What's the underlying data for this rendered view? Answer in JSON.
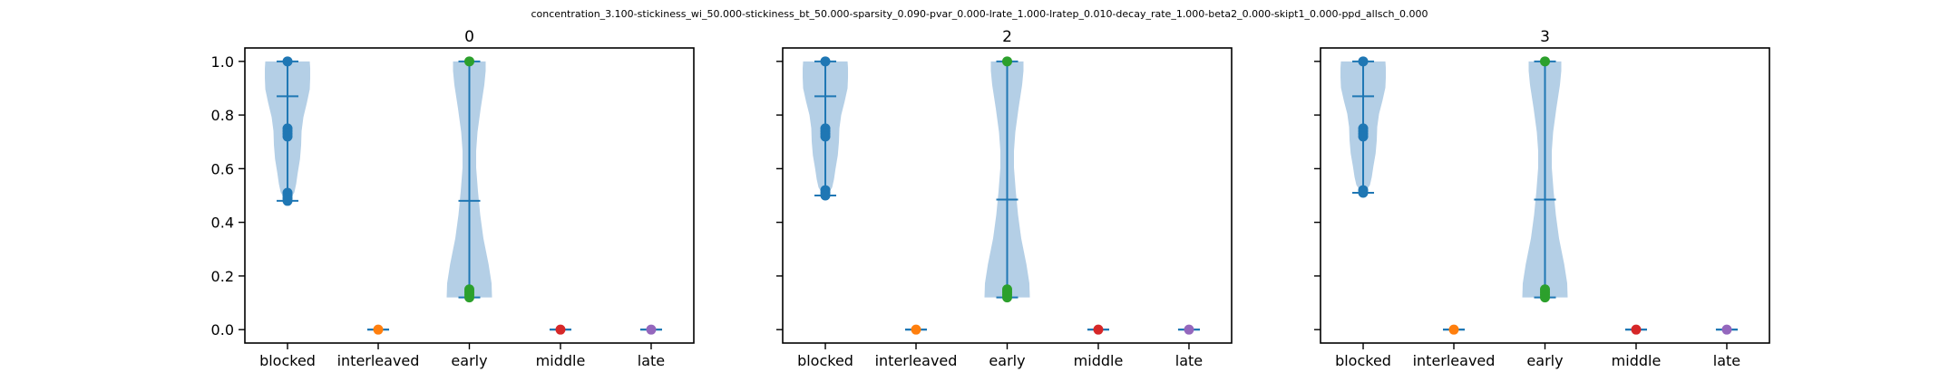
{
  "figure": {
    "suptitle": "concentration_3.100-stickiness_wi_50.000-stickiness_bt_50.000-sparsity_0.090-pvar_0.000-lrate_1.000-lratep_0.010-decay_rate_1.000-beta2_0.000-skipt1_0.000-ppd_allsch_0.000"
  },
  "colors": {
    "blocked": "#1f77b4",
    "interleaved": "#ff7f0e",
    "early": "#2ca02c",
    "middle": "#d62728",
    "late": "#9467bd",
    "violin_fill": "#b4cfe6",
    "stat_line": "#1f77b4"
  },
  "chart_data": [
    {
      "type": "violin",
      "title": "0",
      "categories": [
        "blocked",
        "interleaved",
        "early",
        "middle",
        "late"
      ],
      "yticks": [
        "0.0",
        "0.2",
        "0.4",
        "0.6",
        "0.8",
        "1.0"
      ],
      "ylim": [
        -0.05,
        1.05
      ],
      "show_yticklabels": true,
      "series": [
        {
          "category": "blocked",
          "min": 0.48,
          "max": 1.0,
          "mean": 0.87,
          "points": [
            1.0,
            0.75,
            0.74,
            0.73,
            0.72,
            0.51,
            0.5,
            0.49,
            0.48
          ]
        },
        {
          "category": "interleaved",
          "min": 0.0,
          "max": 0.0,
          "mean": 0.0,
          "points": [
            0.0
          ]
        },
        {
          "category": "early",
          "min": 0.12,
          "max": 1.0,
          "mean": 0.48,
          "points": [
            1.0,
            0.15,
            0.14,
            0.13,
            0.12
          ]
        },
        {
          "category": "middle",
          "min": 0.0,
          "max": 0.0,
          "mean": 0.0,
          "points": [
            0.0
          ]
        },
        {
          "category": "late",
          "min": 0.0,
          "max": 0.0,
          "mean": 0.0,
          "points": [
            0.0
          ]
        }
      ]
    },
    {
      "type": "violin",
      "title": "2",
      "categories": [
        "blocked",
        "interleaved",
        "early",
        "middle",
        "late"
      ],
      "yticks": [
        "0.0",
        "0.2",
        "0.4",
        "0.6",
        "0.8",
        "1.0"
      ],
      "ylim": [
        -0.05,
        1.05
      ],
      "show_yticklabels": false,
      "series": [
        {
          "category": "blocked",
          "min": 0.5,
          "max": 1.0,
          "mean": 0.87,
          "points": [
            1.0,
            0.75,
            0.74,
            0.73,
            0.72,
            0.52,
            0.51,
            0.5
          ]
        },
        {
          "category": "interleaved",
          "min": 0.0,
          "max": 0.0,
          "mean": 0.0,
          "points": [
            0.0
          ]
        },
        {
          "category": "early",
          "min": 0.12,
          "max": 1.0,
          "mean": 0.485,
          "points": [
            1.0,
            0.15,
            0.14,
            0.13,
            0.12
          ]
        },
        {
          "category": "middle",
          "min": 0.0,
          "max": 0.0,
          "mean": 0.0,
          "points": [
            0.0
          ]
        },
        {
          "category": "late",
          "min": 0.0,
          "max": 0.0,
          "mean": 0.0,
          "points": [
            0.0
          ]
        }
      ]
    },
    {
      "type": "violin",
      "title": "3",
      "categories": [
        "blocked",
        "interleaved",
        "early",
        "middle",
        "late"
      ],
      "yticks": [
        "0.0",
        "0.2",
        "0.4",
        "0.6",
        "0.8",
        "1.0"
      ],
      "ylim": [
        -0.05,
        1.05
      ],
      "show_yticklabels": false,
      "series": [
        {
          "category": "blocked",
          "min": 0.51,
          "max": 1.0,
          "mean": 0.87,
          "points": [
            1.0,
            0.75,
            0.74,
            0.73,
            0.72,
            0.52,
            0.51
          ]
        },
        {
          "category": "interleaved",
          "min": 0.0,
          "max": 0.0,
          "mean": 0.0,
          "points": [
            0.0
          ]
        },
        {
          "category": "early",
          "min": 0.12,
          "max": 1.0,
          "mean": 0.485,
          "points": [
            1.0,
            0.15,
            0.14,
            0.13,
            0.12
          ]
        },
        {
          "category": "middle",
          "min": 0.0,
          "max": 0.0,
          "mean": 0.0,
          "points": [
            0.0
          ]
        },
        {
          "category": "late",
          "min": 0.0,
          "max": 0.0,
          "mean": 0.0,
          "points": [
            0.0
          ]
        }
      ]
    }
  ]
}
